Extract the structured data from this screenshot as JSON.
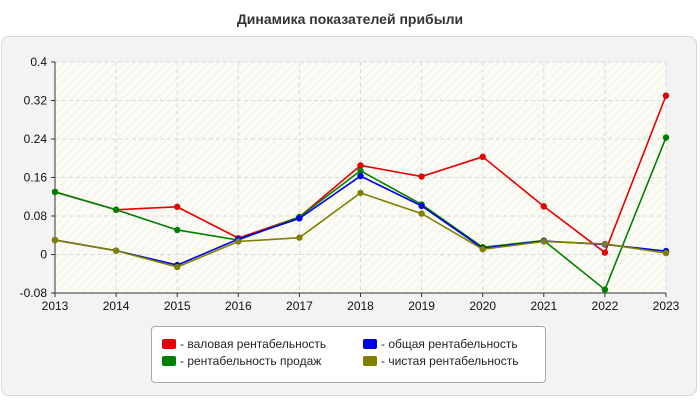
{
  "chart_data": {
    "type": "line",
    "title": "Динамика показателей прибыли",
    "x": [
      "2013",
      "2014",
      "2015",
      "2016",
      "2017",
      "2018",
      "2019",
      "2020",
      "2021",
      "2022",
      "2023"
    ],
    "ylim": [
      -0.08,
      0.4
    ],
    "yticks": [
      -0.08,
      0,
      0.08,
      0.16,
      0.24,
      0.32,
      0.4
    ],
    "ytick_labels": [
      "-0.08",
      "0",
      "0.08",
      "0.16",
      "0.24",
      "0.32",
      "0.4"
    ],
    "grid": true,
    "legend_position": "bottom",
    "series": [
      {
        "name": "- валовая рентабельность",
        "color": "#e60000",
        "values": [
          0.13,
          0.093,
          0.099,
          0.034,
          0.078,
          0.185,
          0.162,
          0.203,
          0.1,
          0.004,
          0.33
        ]
      },
      {
        "name": "- рентабельность продаж",
        "color": "#008000",
        "values": [
          0.13,
          0.093,
          0.051,
          0.03,
          0.078,
          0.174,
          0.104,
          0.015,
          0.029,
          -0.073,
          0.243
        ]
      },
      {
        "name": "- общая рентабельность",
        "color": "#0000e6",
        "values": [
          0.03,
          0.008,
          -0.022,
          0.032,
          0.075,
          0.163,
          0.101,
          0.013,
          0.028,
          0.021,
          0.007
        ]
      },
      {
        "name": "- чистая рентабельность",
        "color": "#808000",
        "values": [
          0.03,
          0.008,
          -0.026,
          0.027,
          0.035,
          0.128,
          0.085,
          0.011,
          0.027,
          0.022,
          0.003
        ]
      }
    ]
  }
}
